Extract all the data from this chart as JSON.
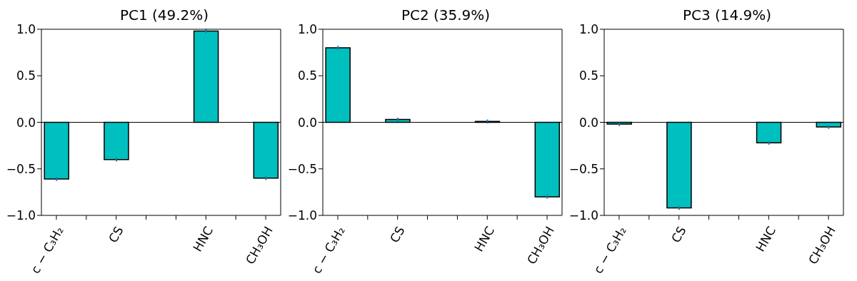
{
  "chart_data": [
    {
      "type": "bar",
      "title": "PC1 (49.2%)",
      "categories": [
        "c − C₃H₂",
        null,
        "CS",
        null,
        null,
        "HNC",
        null,
        "CH₃OH"
      ],
      "values": [
        -0.61,
        null,
        -0.4,
        null,
        null,
        0.98,
        null,
        -0.6
      ],
      "errors": [
        0.02,
        null,
        0.02,
        null,
        null,
        0.02,
        null,
        0.02
      ],
      "color": "#00bfbf",
      "ylim": [
        -1,
        1
      ],
      "yticks": [
        {
          "value": -1,
          "label": "−1.0"
        },
        {
          "value": -0.5,
          "label": "−0.5"
        },
        {
          "value": 0,
          "label": "0.0"
        },
        {
          "value": 0.5,
          "label": "0.5"
        },
        {
          "value": 1,
          "label": "1.0"
        }
      ],
      "ref_lines": [
        {
          "axis": "y",
          "value": 0,
          "color": "#000000"
        }
      ],
      "grid": false
    },
    {
      "type": "bar",
      "title": "PC2 (35.9%)",
      "categories": [
        "c − C₃H₂",
        null,
        "CS",
        null,
        null,
        "HNC",
        null,
        "CH₃OH"
      ],
      "values": [
        0.8,
        null,
        0.03,
        null,
        null,
        0.01,
        null,
        -0.8
      ],
      "errors": [
        0.02,
        null,
        0.02,
        null,
        null,
        0.02,
        null,
        0.02
      ],
      "color": "#00bfbf",
      "ylim": [
        -1,
        1
      ],
      "yticks": [
        {
          "value": -1,
          "label": "−1.0"
        },
        {
          "value": -0.5,
          "label": "−0.5"
        },
        {
          "value": 0,
          "label": "0.0"
        },
        {
          "value": 0.5,
          "label": "0.5"
        },
        {
          "value": 1,
          "label": "1.0"
        }
      ],
      "ref_lines": [
        {
          "axis": "y",
          "value": 0,
          "color": "#000000"
        }
      ],
      "grid": false
    },
    {
      "type": "bar",
      "title": "PC3 (14.9%)",
      "categories": [
        "c − C₃H₂",
        null,
        "CS",
        null,
        null,
        "HNC",
        null,
        "CH₃OH"
      ],
      "values": [
        -0.02,
        null,
        -0.92,
        null,
        null,
        -0.22,
        null,
        -0.05
      ],
      "errors": [
        0.02,
        null,
        0.02,
        null,
        null,
        0.02,
        null,
        0.02
      ],
      "color": "#00bfbf",
      "ylim": [
        -1,
        1
      ],
      "yticks": [
        {
          "value": -1,
          "label": "−1.0"
        },
        {
          "value": -0.5,
          "label": "−0.5"
        },
        {
          "value": 0,
          "label": "0.0"
        },
        {
          "value": 0.5,
          "label": "0.5"
        },
        {
          "value": 1,
          "label": "1.0"
        }
      ],
      "ref_lines": [
        {
          "axis": "y",
          "value": 0,
          "color": "#000000"
        }
      ],
      "grid": false
    }
  ]
}
